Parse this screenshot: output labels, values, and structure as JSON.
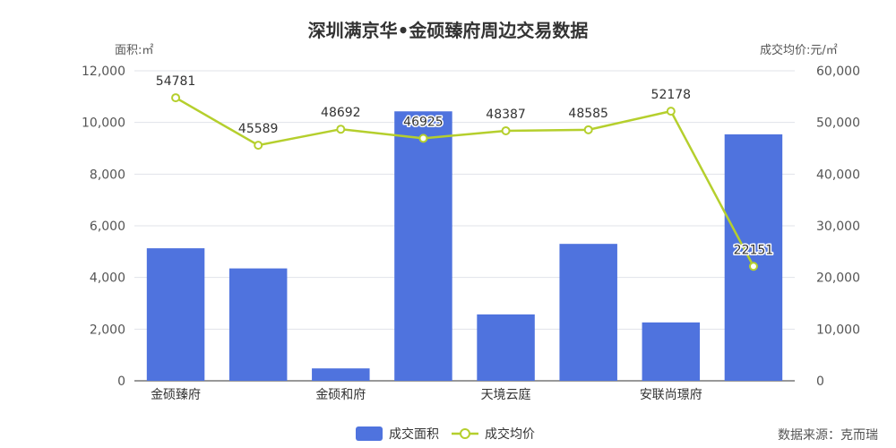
{
  "title": "深圳满京华•金硕臻府周边交易数据",
  "left_axis_name": "面积:㎡",
  "right_axis_name": "成交均价:元/㎡",
  "source": "数据来源：克而瑞",
  "colors": {
    "bar": "#4f73de",
    "line": "#b5cf2d",
    "grid": "#e0e3ea",
    "axis": "#333333"
  },
  "chart_data": {
    "type": "bar",
    "categories": [
      "金硕臻府",
      "",
      "金硕和府",
      "",
      "天境云庭",
      "",
      "安联尚璟府",
      ""
    ],
    "series": [
      {
        "name": "成交面积",
        "type": "bar",
        "axis": "left",
        "values": [
          5130,
          4350,
          480,
          10430,
          2570,
          5300,
          2260,
          9540
        ]
      },
      {
        "name": "成交均价",
        "type": "line",
        "axis": "right",
        "values": [
          54781,
          45589,
          48692,
          46925,
          48387,
          48585,
          52178,
          22151
        ],
        "labels": [
          "54781",
          "45589",
          "48692",
          "46925",
          "48387",
          "48585",
          "52178",
          "22151"
        ]
      }
    ],
    "y_left": {
      "range": [
        0,
        12000
      ],
      "ticks": [
        "0",
        "2,000",
        "4,000",
        "6,000",
        "8,000",
        "10,000",
        "12,000"
      ]
    },
    "y_right": {
      "range": [
        0,
        60000
      ],
      "ticks": [
        "0",
        "10,000",
        "20,000",
        "30,000",
        "40,000",
        "50,000",
        "60,000"
      ]
    },
    "grid": true,
    "legend_position": "bottom-center"
  }
}
